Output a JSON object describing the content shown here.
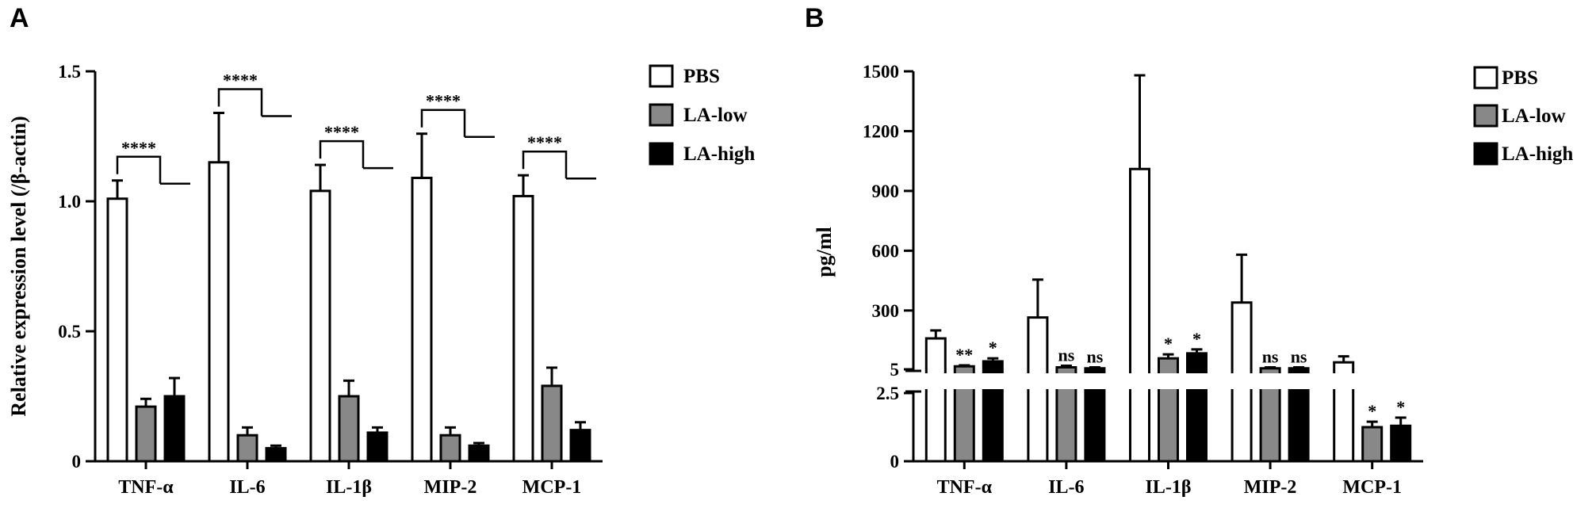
{
  "chart_data": [
    {
      "panel": "A",
      "type": "bar",
      "title": "",
      "xlabel": "",
      "ylabel": "Relative expression level (/β-actin)",
      "ylim": [
        0,
        1.5
      ],
      "yticks": [
        "0",
        "0.5",
        "1.0",
        "1.5"
      ],
      "categories": [
        "TNF-α",
        "IL-6",
        "IL-1β",
        "MIP-2",
        "MCP-1"
      ],
      "series": [
        {
          "name": "PBS",
          "values": [
            1.01,
            1.15,
            1.04,
            1.09,
            1.02
          ],
          "errors": [
            0.07,
            0.19,
            0.1,
            0.17,
            0.08
          ]
        },
        {
          "name": "LA-low",
          "values": [
            0.21,
            0.1,
            0.25,
            0.1,
            0.29
          ],
          "errors": [
            0.03,
            0.03,
            0.06,
            0.03,
            0.07
          ]
        },
        {
          "name": "LA-high",
          "values": [
            0.25,
            0.05,
            0.11,
            0.06,
            0.12
          ],
          "errors": [
            0.07,
            0.01,
            0.02,
            0.01,
            0.03
          ]
        }
      ],
      "significance": [
        "****",
        "****",
        "****",
        "****",
        "****"
      ],
      "legend_position": "top-right"
    },
    {
      "panel": "B",
      "type": "bar",
      "title": "",
      "xlabel": "",
      "ylabel": "pg/ml",
      "broken_axis": true,
      "ylim_lower": [
        0,
        2.5
      ],
      "ylim_upper": [
        5,
        1500
      ],
      "yticks_lower": [
        "0",
        "2.5"
      ],
      "yticks_upper": [
        "5",
        "300",
        "600",
        "900",
        "1200",
        "1500"
      ],
      "categories": [
        "TNF-α",
        "IL-6",
        "IL-1β",
        "MIP-2",
        "MCP-1"
      ],
      "series": [
        {
          "name": "PBS",
          "values": [
            160,
            265,
            1010,
            340,
            40
          ],
          "errors": [
            40,
            190,
            470,
            240,
            30
          ]
        },
        {
          "name": "LA-low",
          "values": [
            20,
            15,
            60,
            10,
            1.25
          ],
          "errors": [
            5,
            8,
            20,
            5,
            0.2
          ]
        },
        {
          "name": "LA-high",
          "values": [
            45,
            10,
            85,
            10,
            1.3
          ],
          "errors": [
            15,
            5,
            20,
            5,
            0.3
          ]
        }
      ],
      "significance": {
        "LA-low": [
          "**",
          "ns",
          "*",
          "ns",
          "*"
        ],
        "LA-high": [
          "*",
          "ns",
          "*",
          "ns",
          "*"
        ]
      },
      "legend_position": "top-right"
    }
  ],
  "colors": {
    "PBS": "#ffffff",
    "LA-low": "#888888",
    "LA-high": "#000000"
  }
}
